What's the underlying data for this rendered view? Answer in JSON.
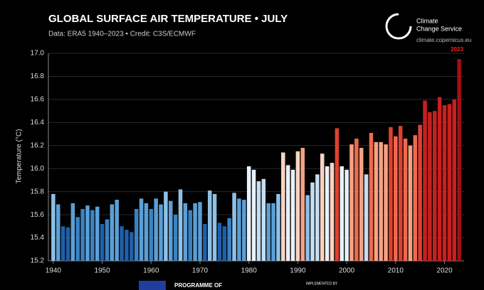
{
  "chart_data": {
    "type": "bar",
    "title": "GLOBAL SURFACE AIR TEMPERATURE • JULY",
    "subtitle": "Data: ERA5 1940–2023 • Credit: C3S/ECMWF",
    "y_label": "Temperature (°C)",
    "annotation": "2023",
    "x": [
      1940,
      1941,
      1942,
      1943,
      1944,
      1945,
      1946,
      1947,
      1948,
      1949,
      1950,
      1951,
      1952,
      1953,
      1954,
      1955,
      1956,
      1957,
      1958,
      1959,
      1960,
      1961,
      1962,
      1963,
      1964,
      1965,
      1966,
      1967,
      1968,
      1969,
      1970,
      1971,
      1972,
      1973,
      1974,
      1975,
      1976,
      1977,
      1978,
      1979,
      1980,
      1981,
      1982,
      1983,
      1984,
      1985,
      1986,
      1987,
      1988,
      1989,
      1990,
      1991,
      1992,
      1993,
      1994,
      1995,
      1996,
      1997,
      1998,
      1999,
      2000,
      2001,
      2002,
      2003,
      2004,
      2005,
      2006,
      2007,
      2008,
      2009,
      2010,
      2011,
      2012,
      2013,
      2014,
      2015,
      2016,
      2017,
      2018,
      2019,
      2020,
      2021,
      2022,
      2023
    ],
    "values": [
      15.78,
      15.69,
      15.5,
      15.49,
      15.7,
      15.58,
      15.65,
      15.68,
      15.64,
      15.67,
      15.52,
      15.56,
      15.69,
      15.73,
      15.5,
      15.47,
      15.45,
      15.65,
      15.74,
      15.7,
      15.65,
      15.74,
      15.69,
      15.8,
      15.72,
      15.6,
      15.82,
      15.7,
      15.64,
      15.7,
      15.71,
      15.52,
      15.81,
      15.78,
      15.53,
      15.5,
      15.57,
      15.79,
      15.74,
      15.73,
      16.02,
      15.99,
      15.89,
      15.91,
      15.7,
      15.7,
      15.78,
      16.14,
      16.03,
      15.99,
      16.15,
      16.18,
      15.77,
      15.88,
      15.95,
      16.13,
      16.02,
      16.05,
      16.35,
      16.02,
      15.99,
      16.21,
      16.26,
      16.18,
      15.95,
      16.31,
      16.23,
      16.23,
      16.21,
      16.36,
      16.28,
      16.37,
      16.26,
      16.2,
      16.29,
      16.38,
      16.59,
      16.49,
      16.5,
      16.62,
      16.55,
      16.56,
      16.6,
      16.95
    ],
    "colors": [
      "#8ec0e6",
      "#5c9fd6",
      "#1f5fa8",
      "#1f5fa8",
      "#5c9fd6",
      "#3a82c4",
      "#3a82c4",
      "#5c9fd6",
      "#3a82c4",
      "#5c9fd6",
      "#1f5fa8",
      "#3a82c4",
      "#5c9fd6",
      "#5c9fd6",
      "#1f5fa8",
      "#1f5fa8",
      "#1f5fa8",
      "#3a82c4",
      "#5c9fd6",
      "#5c9fd6",
      "#3a82c4",
      "#5c9fd6",
      "#5c9fd6",
      "#8ec0e6",
      "#5c9fd6",
      "#3a82c4",
      "#8ec0e6",
      "#5c9fd6",
      "#3a82c4",
      "#5c9fd6",
      "#5c9fd6",
      "#1f5fa8",
      "#8ec0e6",
      "#8ec0e6",
      "#1f5fa8",
      "#1f5fa8",
      "#3a82c4",
      "#8ec0e6",
      "#5c9fd6",
      "#5c9fd6",
      "#e8f1fa",
      "#e8f1fa",
      "#c4def2",
      "#c4def2",
      "#5c9fd6",
      "#5c9fd6",
      "#8ec0e6",
      "#fbd3c2",
      "#e8f1fa",
      "#e8f1fa",
      "#fbd3c2",
      "#f7a184",
      "#8ec0e6",
      "#c4def2",
      "#c4def2",
      "#fbd3c2",
      "#e8f1fa",
      "#fbd3c2",
      "#e0402f",
      "#e8f1fa",
      "#e8f1fa",
      "#f7a184",
      "#ee6a4f",
      "#f7a184",
      "#c4def2",
      "#ee6a4f",
      "#f7a184",
      "#f7a184",
      "#f7a184",
      "#e0402f",
      "#ee6a4f",
      "#e0402f",
      "#ee6a4f",
      "#f7a184",
      "#ee6a4f",
      "#e0402f",
      "#c81f1f",
      "#c81f1f",
      "#c81f1f",
      "#c81f1f",
      "#c81f1f",
      "#c81f1f",
      "#c81f1f",
      "#a50f15"
    ],
    "xlim": [
      1939,
      2024
    ],
    "xticks": [
      1940,
      1950,
      1960,
      1970,
      1980,
      1990,
      2000,
      2010,
      2020
    ],
    "ylim": [
      15.2,
      17.0
    ],
    "yticks": [
      15.2,
      15.4,
      15.6,
      15.8,
      {
        "value": 16.0,
        "label": "16.0"
      },
      16.2,
      16.4,
      16.6,
      16.8,
      {
        "value": 17.0,
        "label": "17.0"
      }
    ],
    "grid": true
  },
  "logo": {
    "line1": "Climate",
    "line2": "Change Service",
    "url": "climate.copernicus.eu"
  },
  "footer": {
    "programme": "PROGRAMME OF",
    "implemented": "IMPLEMENTED BY"
  }
}
